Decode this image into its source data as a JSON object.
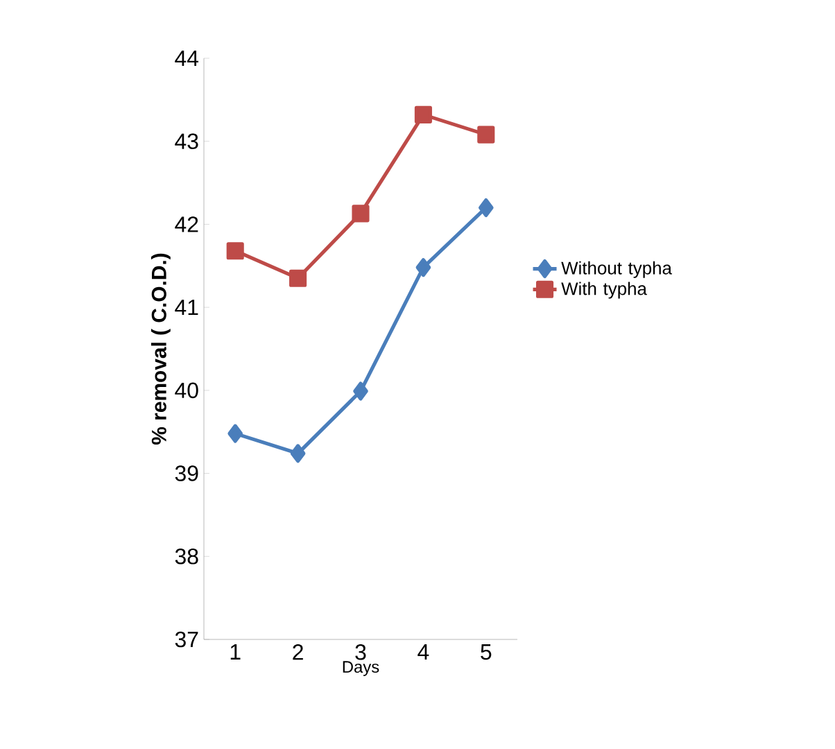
{
  "chart_data": {
    "type": "line",
    "xlabel": "Days",
    "ylabel": "% removal ( C.O.D.)",
    "categories": [
      "1",
      "2",
      "3",
      "4",
      "5"
    ],
    "series": [
      {
        "name": "Without typha",
        "color": "#4a7ebb",
        "marker": "diamond",
        "values": [
          39.48,
          39.24,
          39.99,
          41.48,
          42.2
        ]
      },
      {
        "name": "With typha",
        "color": "#be4b48",
        "marker": "square",
        "values": [
          41.68,
          41.35,
          42.13,
          43.32,
          43.08
        ]
      }
    ],
    "ylim": [
      37,
      44
    ],
    "yticks": [
      37,
      38,
      39,
      40,
      41,
      42,
      43,
      44
    ],
    "grid": false,
    "legend": "right"
  }
}
